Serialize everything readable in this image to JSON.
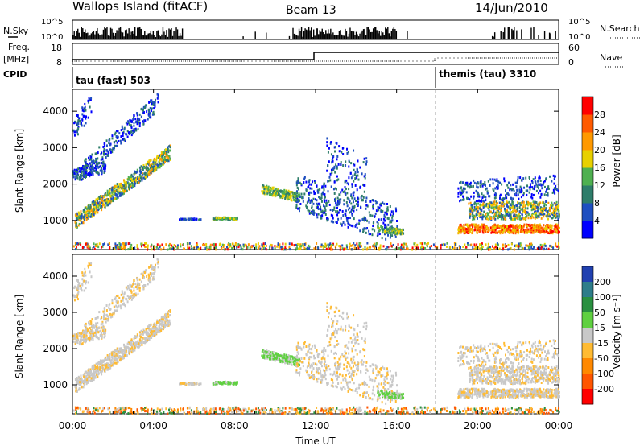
{
  "header": {
    "station": "Wallops Island (fitACF)",
    "beam": "Beam 13",
    "date": "14/Jun/2010"
  },
  "strip": {
    "nsky_label": "N.Sky",
    "nsearch_label": "N.Search",
    "freq_label": "Freq.",
    "freq_unit": "[MHz]",
    "nave_label": "Nave",
    "cpid_label": "CPID",
    "nsky_ticks": [
      "10^5",
      "10^0"
    ],
    "nsearch_ticks": [
      "10^5",
      "10^0"
    ],
    "freq_ticks": [
      "18",
      "8"
    ],
    "nave_ticks": [
      "60",
      "0"
    ],
    "cpid_segments": [
      {
        "label": "tau (fast) 503",
        "start_hour": 0,
        "end_hour": 18
      },
      {
        "label": "themis (tau) 3310",
        "start_hour": 18,
        "end_hour": 24
      }
    ]
  },
  "chart_data": [
    {
      "type": "heatmap",
      "quantity": "Power",
      "ylabel": "Slant Range [km]",
      "xlabel": "Time UT",
      "x_ticks": [
        "00:00",
        "04:00",
        "08:00",
        "12:00",
        "16:00",
        "20:00",
        "00:00"
      ],
      "y_ticks": [
        "1000",
        "2000",
        "3000",
        "4000"
      ],
      "ylim": [
        200,
        4600
      ],
      "xlim_hours": [
        0,
        24
      ],
      "colorbar": {
        "label": "Power [dB]",
        "ticks": [
          "4",
          "8",
          "12",
          "16",
          "20",
          "24",
          "28"
        ],
        "colors": [
          "#0000ff",
          "#1f4fc0",
          "#2e7d6a",
          "#4fb050",
          "#e8d000",
          "#ff9900",
          "#ff5a00",
          "#ff0000"
        ]
      }
    },
    {
      "type": "heatmap",
      "quantity": "Velocity",
      "ylabel": "Slant Range [km]",
      "xlabel": "Time UT",
      "x_ticks": [
        "00:00",
        "04:00",
        "08:00",
        "12:00",
        "16:00",
        "20:00",
        "00:00"
      ],
      "y_ticks": [
        "1000",
        "2000",
        "3000",
        "4000"
      ],
      "ylim": [
        200,
        4600
      ],
      "xlim_hours": [
        0,
        24
      ],
      "colorbar": {
        "label": "Velocity [m s⁻¹]",
        "ticks": [
          "200",
          "100",
          "50",
          "15",
          "-15",
          "-50",
          "-100",
          "-200"
        ],
        "colors": [
          "#2040b0",
          "#2e7d8a",
          "#2a9040",
          "#5fd040",
          "#c8c8c8",
          "#ffbb33",
          "#ff8800",
          "#ff5500",
          "#ff0000"
        ]
      }
    }
  ],
  "xaxis_label": "Time UT"
}
